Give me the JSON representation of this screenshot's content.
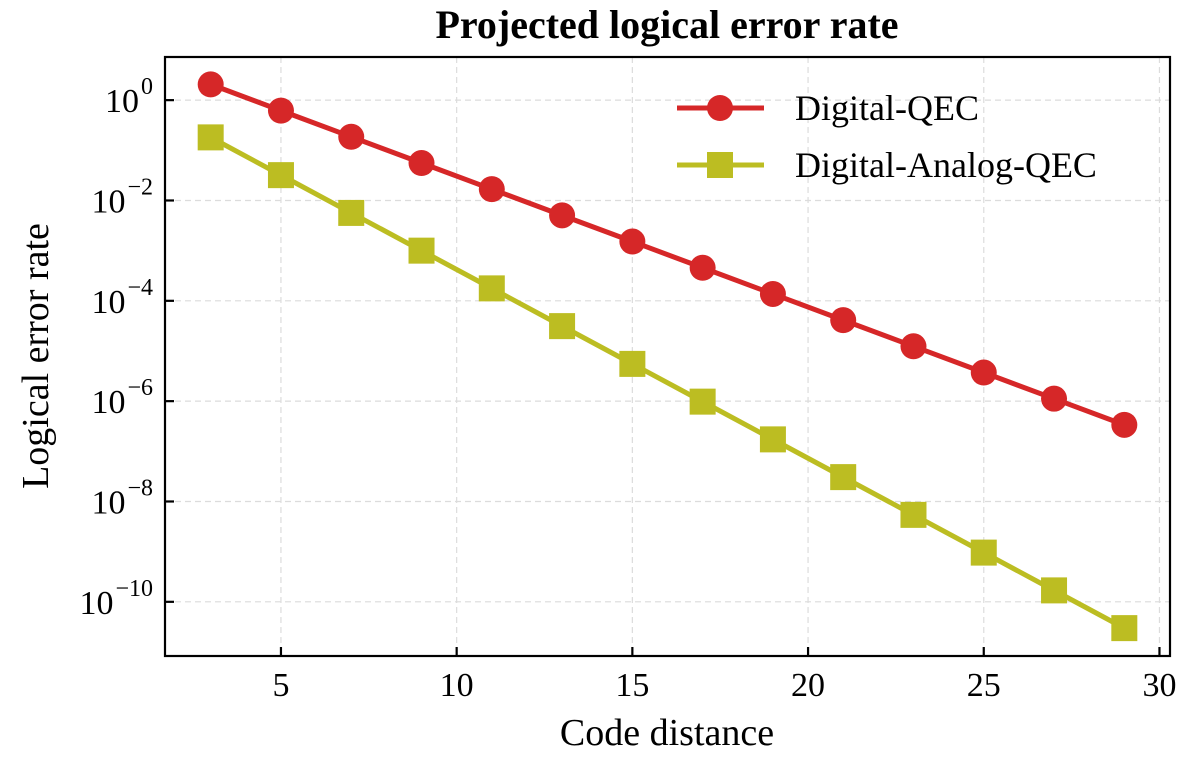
{
  "chart_data": {
    "type": "line",
    "title": "Projected logical error rate",
    "xlabel": "Code distance",
    "ylabel": "Logical error rate",
    "xscale": "linear",
    "yscale": "log",
    "xlim": [
      1.7,
      30.3
    ],
    "ylim_log10": [
      -11.08,
      0.86
    ],
    "xticks": [
      5,
      10,
      15,
      20,
      25,
      30
    ],
    "xtick_labels": [
      "5",
      "10",
      "15",
      "20",
      "25",
      "30"
    ],
    "yticks_log10": [
      0,
      -2,
      -4,
      -6,
      -8,
      -10
    ],
    "ytick_labels": [
      {
        "base": "10",
        "exp": "0"
      },
      {
        "base": "10",
        "exp": "−2"
      },
      {
        "base": "10",
        "exp": "−4"
      },
      {
        "base": "10",
        "exp": "−6"
      },
      {
        "base": "10",
        "exp": "−8"
      },
      {
        "base": "10",
        "exp": "−10"
      }
    ],
    "grid": true,
    "legend_position": "top-right",
    "x": [
      3,
      5,
      7,
      9,
      11,
      13,
      15,
      17,
      19,
      21,
      23,
      25,
      27,
      29
    ],
    "series": [
      {
        "name": "Digital-QEC",
        "color": "#d62728",
        "marker": "circle",
        "values": [
          2.06,
          0.618,
          0.186,
          0.0558,
          0.0168,
          0.00505,
          0.00152,
          0.000456,
          0.000137,
          4.12e-05,
          1.24e-05,
          3.72e-06,
          1.12e-06,
          3.37e-07
        ]
      },
      {
        "name": "Digital-Analog-QEC",
        "color": "#bcbd22",
        "marker": "square",
        "values": [
          0.181,
          0.032,
          0.00565,
          0.001,
          0.000177,
          3.13e-05,
          5.53e-06,
          9.78e-07,
          1.73e-07,
          3.06e-08,
          5.41e-09,
          9.57e-10,
          1.69e-10,
          2.99e-11
        ]
      }
    ]
  }
}
